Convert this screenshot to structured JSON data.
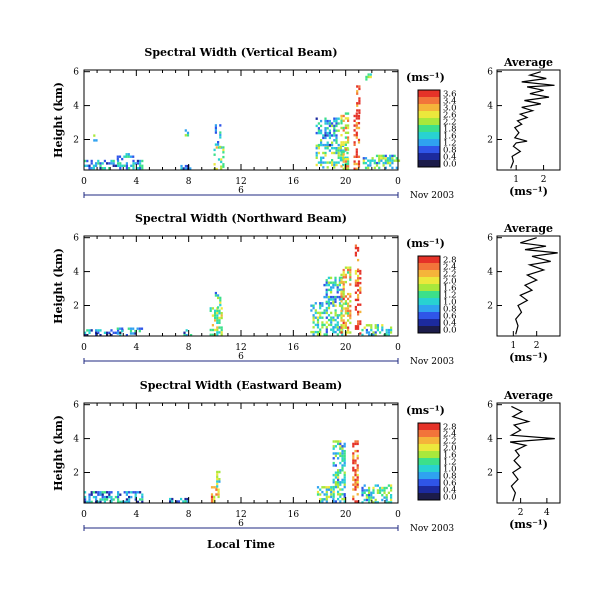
{
  "colors": {
    "scale": [
      "#1c1c4a",
      "#1c2a9e",
      "#2f55e8",
      "#2fa2f0",
      "#28d2d2",
      "#3ce08a",
      "#a8e83c",
      "#ece83c",
      "#f5b43a",
      "#f2743a",
      "#e53228"
    ],
    "range_bar": "#1f2a80",
    "profile": "#000000"
  },
  "footer": {
    "xlabel": "Local Time",
    "date": "Nov 2003"
  },
  "chart_data": [
    {
      "type": "heatmap",
      "title": "Spectral Width (Vertical Beam)",
      "ylabel": "Height (km)",
      "xlabel": "Local Time",
      "x_ticks": [
        "0",
        "4",
        "8",
        "12",
        "16",
        "20",
        "0"
      ],
      "y_ticks": [
        "2",
        "4",
        "6"
      ],
      "xlim": [
        0,
        24
      ],
      "ylim": [
        0.2,
        6.1
      ],
      "date_marker": "6",
      "date_label": "Nov 2003",
      "colorbar": {
        "unit": "(ms⁻¹)",
        "ticks": [
          "3.6",
          "3.4",
          "3.0",
          "2.6",
          "2.2",
          "1.8",
          "1.6",
          "1.2",
          "0.8",
          "0.4",
          "0.0"
        ]
      },
      "patches": [
        {
          "x": [
            0.0,
            4.5
          ],
          "y": [
            0.25,
            0.8
          ],
          "level": 0.3
        },
        {
          "x": [
            2.5,
            4.0
          ],
          "y": [
            0.8,
            1.2
          ],
          "level": 0.35
        },
        {
          "x": [
            0.7,
            0.9
          ],
          "y": [
            2.0,
            2.3
          ],
          "level": 0.5
        },
        {
          "x": [
            7.7,
            7.9
          ],
          "y": [
            2.3,
            2.6
          ],
          "level": 0.5
        },
        {
          "x": [
            7.2,
            8.2
          ],
          "y": [
            0.3,
            0.5
          ],
          "level": 0.25
        },
        {
          "x": [
            9.9,
            10.6
          ],
          "y": [
            0.3,
            1.6
          ],
          "level": 0.55
        },
        {
          "x": [
            10.0,
            10.4
          ],
          "y": [
            1.6,
            2.9
          ],
          "level": 0.4
        },
        {
          "x": [
            17.7,
            20.2
          ],
          "y": [
            0.3,
            1.7
          ],
          "level": 0.5
        },
        {
          "x": [
            17.7,
            19.5
          ],
          "y": [
            1.7,
            3.3
          ],
          "level": 0.35
        },
        {
          "x": [
            19.6,
            20.2
          ],
          "y": [
            0.3,
            3.6
          ],
          "level": 0.7
        },
        {
          "x": [
            20.6,
            21.1
          ],
          "y": [
            0.3,
            3.6
          ],
          "level": 0.95
        },
        {
          "x": [
            20.8,
            21.0
          ],
          "y": [
            3.6,
            5.2
          ],
          "level": 1.0
        },
        {
          "x": [
            21.3,
            24.0
          ],
          "y": [
            0.3,
            1.1
          ],
          "level": 0.45
        },
        {
          "x": [
            21.5,
            22.0
          ],
          "y": [
            5.6,
            5.9
          ],
          "level": 0.5
        }
      ],
      "profile": {
        "title": "Average",
        "xlabel": "(ms⁻¹)",
        "x_ticks": [
          "1",
          "2"
        ],
        "y_ticks": [
          "2",
          "4",
          "6"
        ],
        "xlim": [
          0.3,
          2.6
        ],
        "ylim": [
          0.2,
          6.1
        ],
        "points": [
          [
            0.8,
            0.3
          ],
          [
            0.9,
            0.7
          ],
          [
            0.85,
            1.0
          ],
          [
            1.15,
            1.3
          ],
          [
            0.9,
            1.6
          ],
          [
            1.0,
            1.8
          ],
          [
            1.4,
            1.9
          ],
          [
            0.95,
            2.1
          ],
          [
            1.1,
            2.4
          ],
          [
            0.95,
            2.7
          ],
          [
            1.2,
            2.9
          ],
          [
            1.05,
            3.1
          ],
          [
            1.4,
            3.3
          ],
          [
            1.15,
            3.5
          ],
          [
            1.6,
            3.7
          ],
          [
            1.2,
            3.9
          ],
          [
            1.9,
            4.1
          ],
          [
            1.3,
            4.3
          ],
          [
            2.2,
            4.5
          ],
          [
            1.5,
            4.7
          ],
          [
            2.0,
            4.9
          ],
          [
            1.4,
            5.1
          ],
          [
            2.4,
            5.2
          ],
          [
            1.2,
            5.4
          ],
          [
            2.1,
            5.6
          ],
          [
            1.5,
            5.8
          ],
          [
            1.9,
            6.0
          ]
        ]
      }
    },
    {
      "type": "heatmap",
      "title": "Spectral Width (Northward Beam)",
      "ylabel": "Height (km)",
      "xlabel": "Local Time",
      "x_ticks": [
        "0",
        "4",
        "8",
        "12",
        "16",
        "20",
        "0"
      ],
      "y_ticks": [
        "2",
        "4",
        "6"
      ],
      "xlim": [
        0,
        24
      ],
      "ylim": [
        0.2,
        6.1
      ],
      "date_marker": "6",
      "date_label": "Nov 2003",
      "colorbar": {
        "unit": "(ms⁻¹)",
        "ticks": [
          "2.8",
          "2.4",
          "2.2",
          "2.0",
          "1.6",
          "1.2",
          "1.0",
          "0.8",
          "0.6",
          "0.4",
          "0.0"
        ]
      },
      "patches": [
        {
          "x": [
            0.0,
            3.5
          ],
          "y": [
            0.25,
            0.6
          ],
          "level": 0.25
        },
        {
          "x": [
            2.5,
            4.5
          ],
          "y": [
            0.3,
            0.7
          ],
          "level": 0.35
        },
        {
          "x": [
            7.6,
            8.2
          ],
          "y": [
            0.3,
            0.6
          ],
          "level": 0.3
        },
        {
          "x": [
            9.6,
            10.6
          ],
          "y": [
            0.3,
            1.9
          ],
          "level": 0.6
        },
        {
          "x": [
            10.0,
            10.5
          ],
          "y": [
            1.9,
            2.8
          ],
          "level": 0.45
        },
        {
          "x": [
            17.3,
            19.8
          ],
          "y": [
            0.3,
            2.2
          ],
          "level": 0.45
        },
        {
          "x": [
            18.3,
            19.8
          ],
          "y": [
            2.2,
            3.7
          ],
          "level": 0.4
        },
        {
          "x": [
            19.6,
            20.3
          ],
          "y": [
            0.3,
            4.3
          ],
          "level": 0.75
        },
        {
          "x": [
            20.7,
            21.1
          ],
          "y": [
            0.3,
            4.1
          ],
          "level": 0.95
        },
        {
          "x": [
            20.7,
            21.0
          ],
          "y": [
            4.1,
            5.6
          ],
          "level": 1.0
        },
        {
          "x": [
            21.2,
            23.5
          ],
          "y": [
            0.3,
            0.9
          ],
          "level": 0.45
        }
      ],
      "profile": {
        "title": "Average",
        "xlabel": "(ms⁻¹)",
        "x_ticks": [
          "1",
          "2"
        ],
        "y_ticks": [
          "2",
          "4",
          "6"
        ],
        "xlim": [
          0.3,
          3.0
        ],
        "ylim": [
          0.2,
          6.1
        ],
        "points": [
          [
            1.1,
            0.3
          ],
          [
            1.2,
            0.8
          ],
          [
            1.1,
            1.2
          ],
          [
            1.35,
            1.6
          ],
          [
            1.2,
            2.0
          ],
          [
            1.6,
            2.3
          ],
          [
            1.3,
            2.6
          ],
          [
            1.8,
            2.9
          ],
          [
            1.5,
            3.2
          ],
          [
            2.0,
            3.5
          ],
          [
            1.6,
            3.8
          ],
          [
            2.3,
            4.1
          ],
          [
            1.7,
            4.4
          ],
          [
            2.6,
            4.6
          ],
          [
            1.8,
            4.9
          ],
          [
            2.9,
            5.1
          ],
          [
            1.5,
            5.3
          ],
          [
            2.4,
            5.5
          ],
          [
            1.3,
            5.7
          ],
          [
            2.0,
            6.0
          ]
        ]
      }
    },
    {
      "type": "heatmap",
      "title": "Spectral Width (Eastward Beam)",
      "ylabel": "Height (km)",
      "xlabel": "Local Time",
      "x_ticks": [
        "0",
        "4",
        "8",
        "12",
        "16",
        "20",
        "0"
      ],
      "y_ticks": [
        "2",
        "4",
        "6"
      ],
      "xlim": [
        0,
        24
      ],
      "ylim": [
        0.2,
        6.1
      ],
      "date_marker": "6",
      "date_label": "Nov 2003",
      "colorbar": {
        "unit": "(ms⁻¹)",
        "ticks": [
          "2.8",
          "2.4",
          "2.2",
          "2.0",
          "1.6",
          "1.2",
          "1.0",
          "0.8",
          "0.6",
          "0.4",
          "0.0"
        ]
      },
      "patches": [
        {
          "x": [
            0.0,
            4.5
          ],
          "y": [
            0.3,
            0.9
          ],
          "level": 0.3
        },
        {
          "x": [
            6.5,
            8.0
          ],
          "y": [
            0.3,
            0.5
          ],
          "level": 0.25
        },
        {
          "x": [
            9.7,
            10.3
          ],
          "y": [
            0.3,
            1.2
          ],
          "level": 0.8
        },
        {
          "x": [
            10.1,
            10.4
          ],
          "y": [
            1.2,
            2.1
          ],
          "level": 0.5
        },
        {
          "x": [
            17.8,
            19.0
          ],
          "y": [
            0.3,
            1.2
          ],
          "level": 0.5
        },
        {
          "x": [
            19.0,
            20.0
          ],
          "y": [
            0.3,
            3.9
          ],
          "level": 0.45
        },
        {
          "x": [
            20.5,
            21.0
          ],
          "y": [
            0.3,
            3.9
          ],
          "level": 0.95
        },
        {
          "x": [
            21.2,
            23.5
          ],
          "y": [
            0.3,
            1.3
          ],
          "level": 0.45
        }
      ],
      "profile": {
        "title": "Average",
        "xlabel": "(ms⁻¹)",
        "x_ticks": [
          "2",
          "4"
        ],
        "y_ticks": [
          "2",
          "4",
          "6"
        ],
        "xlim": [
          0.2,
          5.0
        ],
        "ylim": [
          0.2,
          6.1
        ],
        "points": [
          [
            1.4,
            0.3
          ],
          [
            1.6,
            0.8
          ],
          [
            1.3,
            1.2
          ],
          [
            1.8,
            1.6
          ],
          [
            1.4,
            2.0
          ],
          [
            2.0,
            2.3
          ],
          [
            1.5,
            2.7
          ],
          [
            1.9,
            3.0
          ],
          [
            1.6,
            3.3
          ],
          [
            2.4,
            3.6
          ],
          [
            1.2,
            3.8
          ],
          [
            4.6,
            4.0
          ],
          [
            1.3,
            4.2
          ],
          [
            2.0,
            4.5
          ],
          [
            1.5,
            4.8
          ],
          [
            2.6,
            5.0
          ],
          [
            1.4,
            5.3
          ],
          [
            2.1,
            5.6
          ],
          [
            1.3,
            5.9
          ]
        ]
      }
    }
  ]
}
